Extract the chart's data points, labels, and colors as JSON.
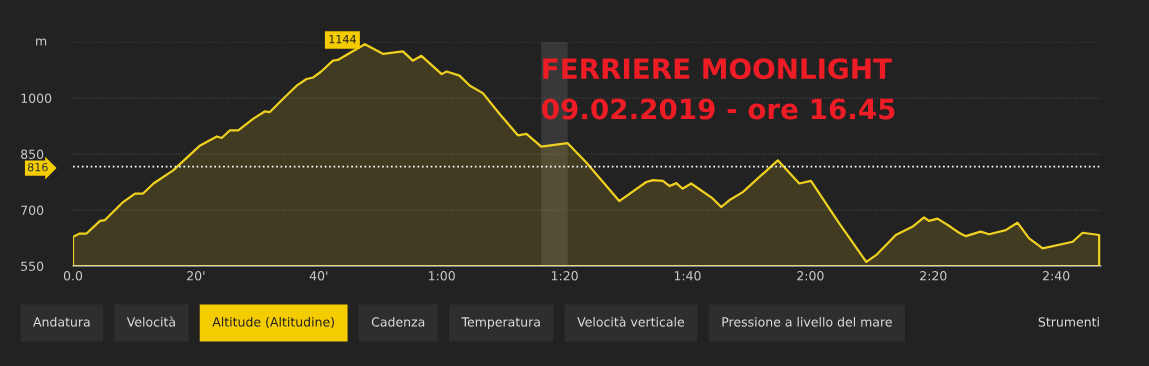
{
  "chart_data": {
    "type": "area",
    "title": "FERRIERE MOONLIGHT",
    "subtitle": "09.02.2019 - ore 16.45",
    "ylabel": "m",
    "x": [
      0,
      1.1,
      2.2,
      4.4,
      5.2,
      8.2,
      10.1,
      11.4,
      13.1,
      16.3,
      20.7,
      23.4,
      24.2,
      25.5,
      26.9,
      29.3,
      31.2,
      32.0,
      34.2,
      36.4,
      38.0,
      39.1,
      40.4,
      42.3,
      43.1,
      45.6,
      47.5,
      50.5,
      53.7,
      55.3,
      56.7,
      60.0,
      60.8,
      62.9,
      64.6,
      66.7,
      69.4,
      72.4,
      73.8,
      76.2,
      80.5,
      83.5,
      88.9,
      93.3,
      94.4,
      96.0,
      97.1,
      98.2,
      99.2,
      100.6,
      104.1,
      105.5,
      106.8,
      109.0,
      114.7,
      118.2,
      120.1,
      124.7,
      129.1,
      130.7,
      133.9,
      136.6,
      138.5,
      139.3,
      140.7,
      142.8,
      144.2,
      145.3,
      147.7,
      149.1,
      151.8,
      153.7,
      155.6,
      157.8,
      162.7,
      164.3,
      167.0
    ],
    "series": [
      {
        "color": "#f0d020",
        "values": [
          628,
          637,
          637,
          671,
          673,
          722,
          744,
          744,
          771,
          806,
          873,
          897,
          893,
          913,
          913,
          944,
          964,
          962,
          998,
          1033,
          1051,
          1055,
          1071,
          1100,
          1102,
          1126,
          1144,
          1118,
          1125,
          1100,
          1113,
          1064,
          1071,
          1060,
          1033,
          1013,
          958,
          900,
          904,
          870,
          879,
          828,
          724,
          775,
          780,
          778,
          764,
          772,
          757,
          771,
          731,
          708,
          726,
          748,
          833,
          771,
          778,
          664,
          561,
          579,
          633,
          655,
          680,
          671,
          677,
          655,
          639,
          630,
          642,
          635,
          646,
          666,
          624,
          597,
          615,
          639,
          633
        ]
      }
    ],
    "xlim": [
      0,
      167.3
    ],
    "xticks": [
      {
        "value": 0,
        "label": "0.0"
      },
      {
        "value": 20,
        "label": "20'"
      },
      {
        "value": 40,
        "label": "40'"
      },
      {
        "value": 60,
        "label": "1:00"
      },
      {
        "value": 80,
        "label": "1:20"
      },
      {
        "value": 100,
        "label": "1:40"
      },
      {
        "value": 120,
        "label": "2:00"
      },
      {
        "value": 140,
        "label": "2:20"
      },
      {
        "value": 160,
        "label": "2:40"
      }
    ],
    "ylim": [
      550,
      1150
    ],
    "yticks": [
      550,
      700,
      850,
      1000,
      {
        "value": 1150,
        "label": null
      }
    ],
    "grid": "y",
    "ref_lines": [
      {
        "axis": "y",
        "value": 816,
        "label": "816",
        "color": "#ffffff",
        "line_style": "dotted"
      }
    ],
    "bands": [
      {
        "axis": "x",
        "from": 76.2,
        "to": 80.5,
        "color": "#383838"
      }
    ],
    "annotations": [
      "1144",
      "Andatura",
      "Velocità",
      "Altitude (Altitudine)",
      "Cadenza",
      "Temperatura",
      "Velocità verticale",
      "Pressione a livello del mare",
      "Strumenti"
    ]
  }
}
